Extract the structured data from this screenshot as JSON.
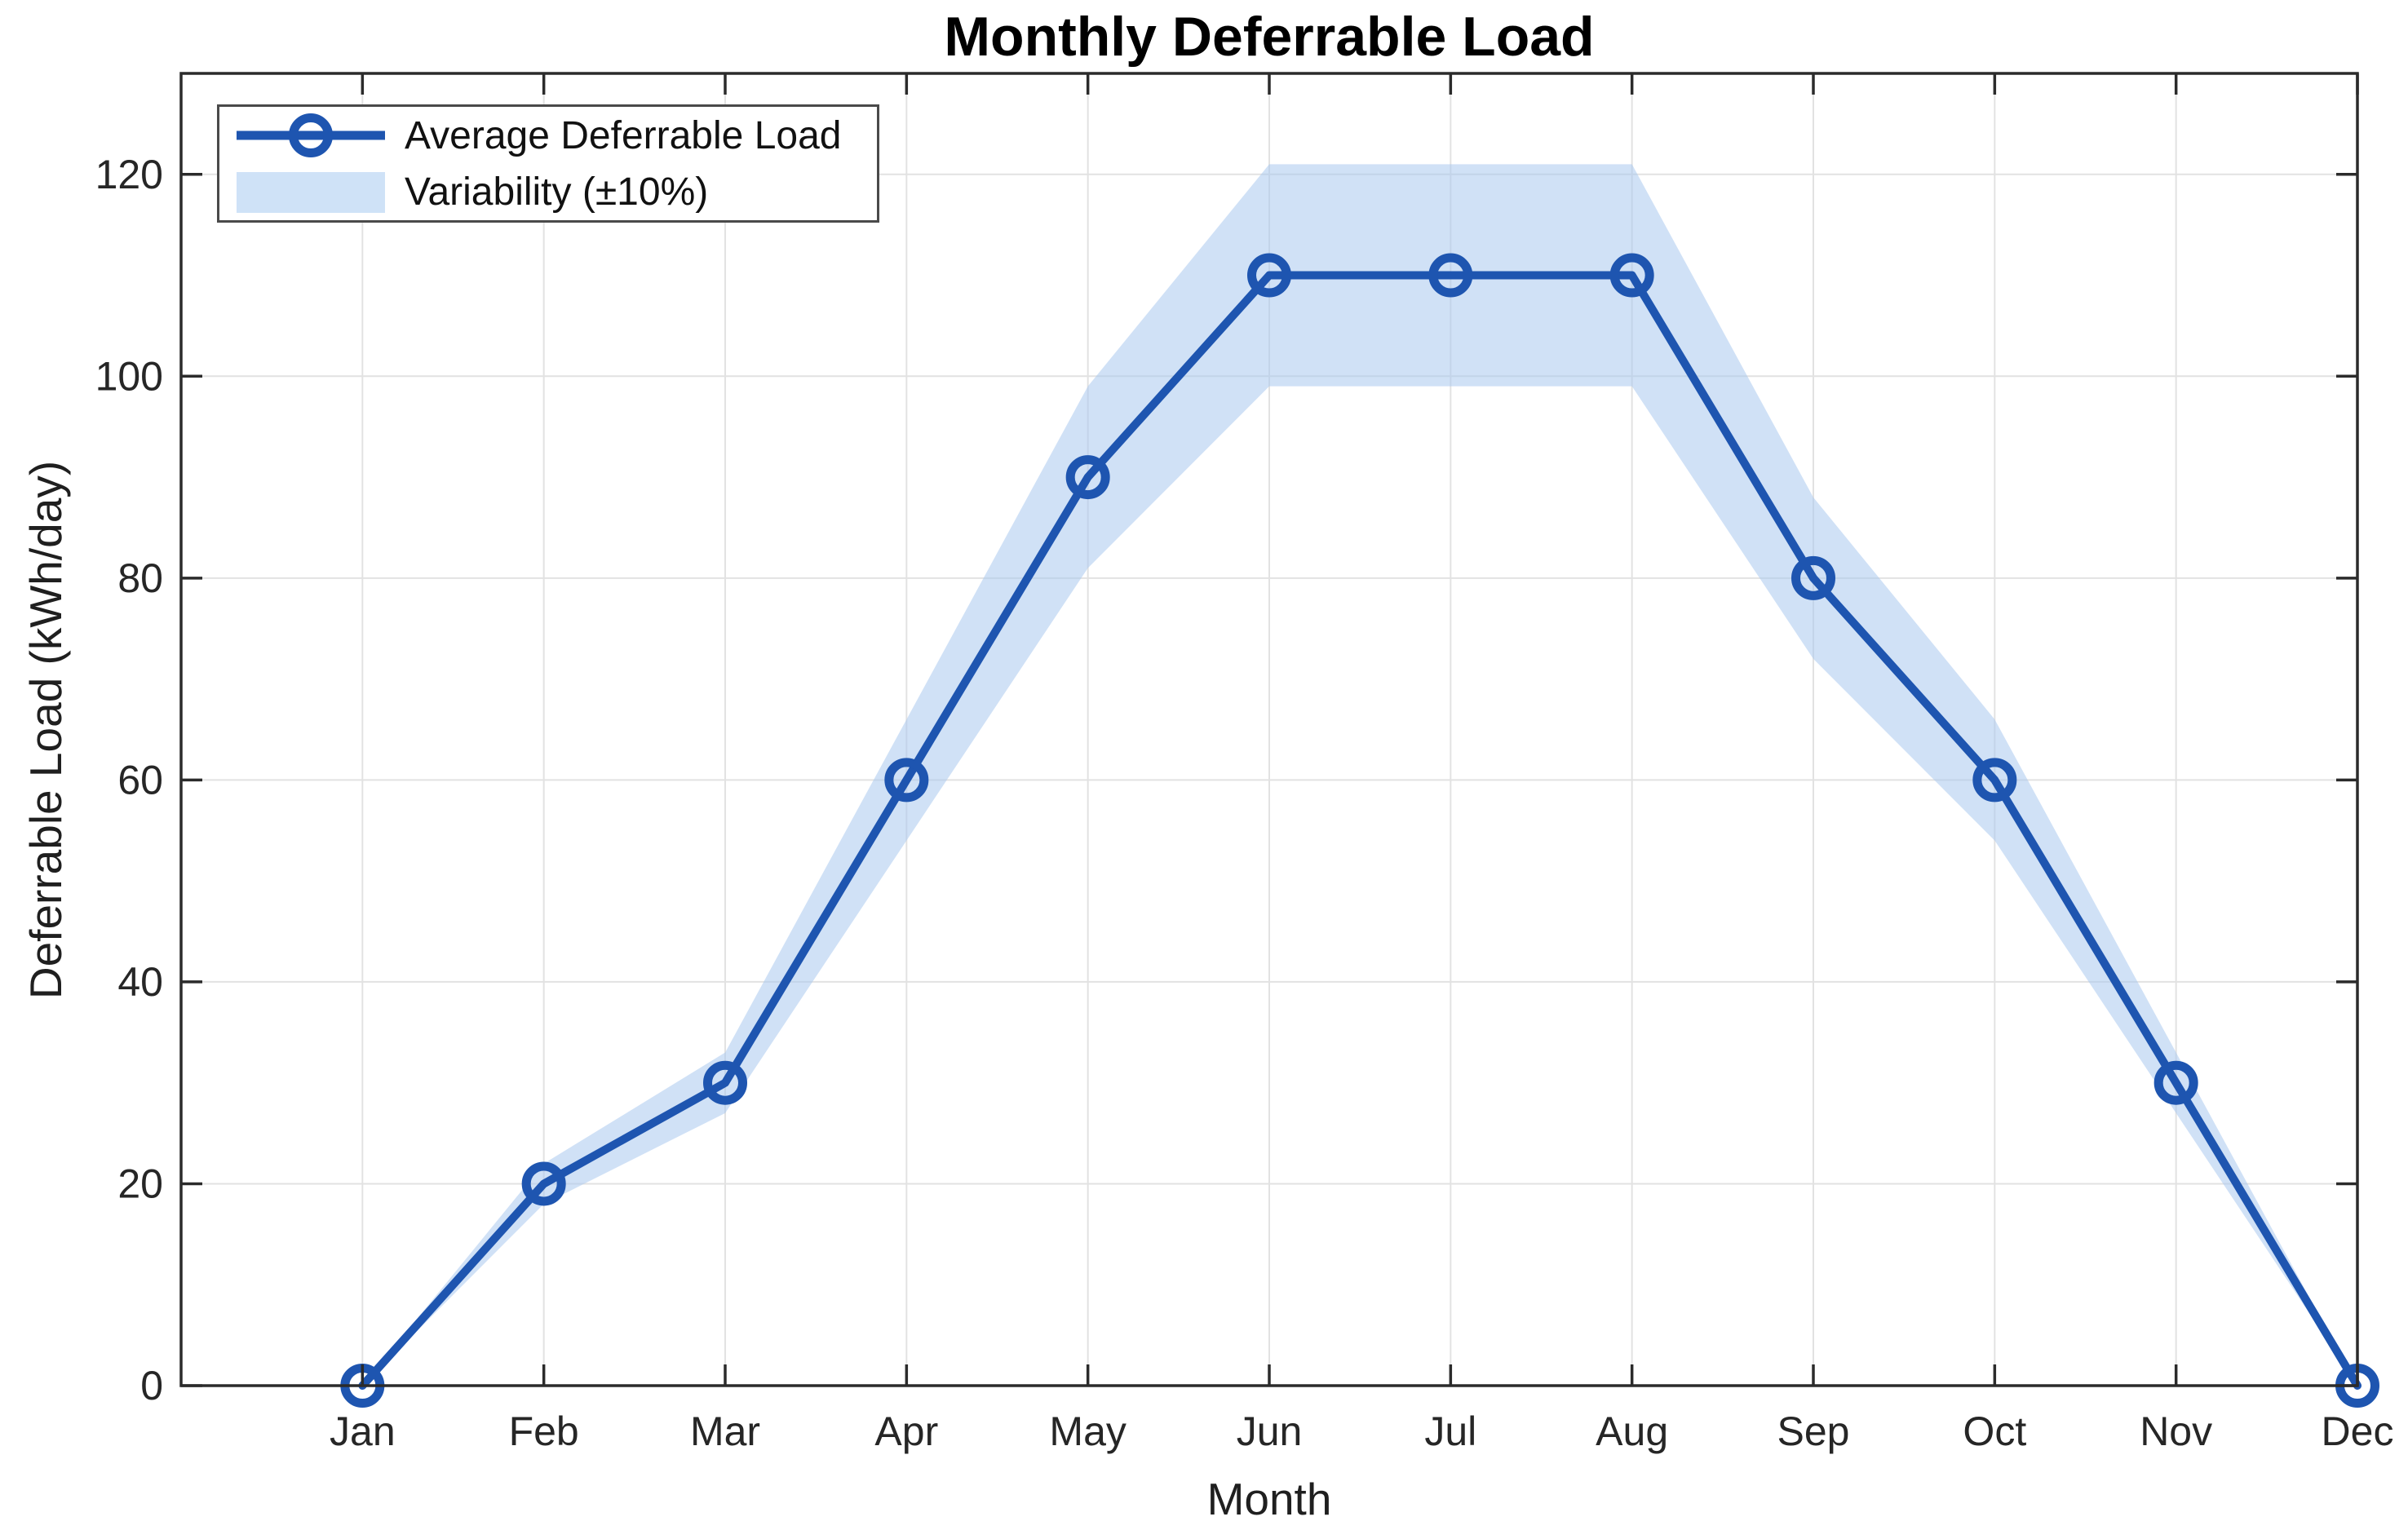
{
  "chart_data": {
    "type": "line",
    "title": "Monthly Deferrable Load",
    "xlabel": "Month",
    "ylabel": "Deferrable Load (kWh/day)",
    "categories": [
      "Jan",
      "Feb",
      "Mar",
      "Apr",
      "May",
      "Jun",
      "Jul",
      "Aug",
      "Sep",
      "Oct",
      "Nov",
      "Dec"
    ],
    "x": [
      1,
      2,
      3,
      4,
      5,
      6,
      7,
      8,
      9,
      10,
      11,
      12
    ],
    "series": [
      {
        "name": "Average Deferrable Load",
        "values": [
          0,
          20,
          30,
          60,
          90,
          110,
          110,
          110,
          80,
          60,
          30,
          0
        ]
      }
    ],
    "band": {
      "name": "Variability (±10%)",
      "pct": 10,
      "upper": [
        0,
        22,
        33,
        66,
        99,
        121,
        121,
        121,
        88,
        66,
        33,
        0
      ],
      "lower": [
        0,
        18,
        27,
        54,
        81,
        99,
        99,
        99,
        72,
        54,
        27,
        0
      ]
    },
    "yticks": [
      0,
      20,
      40,
      60,
      80,
      100,
      120
    ],
    "xlim": [
      0,
      12
    ],
    "ylim": [
      0,
      130
    ],
    "grid": true,
    "legend_position": "top-left",
    "marker": "circle-hollow"
  },
  "colors": {
    "line": "#1e55b0",
    "band_fill": "#a9c9ee",
    "band_opacity": 0.55,
    "legend_band_patch": "#cfe2f7",
    "grid": "#e2e2e2",
    "axis": "#2b2b2b",
    "tick_text": "#262626",
    "label_text": "#1f1f1f",
    "legend_border": "#4a4a4a",
    "background": "#ffffff"
  }
}
